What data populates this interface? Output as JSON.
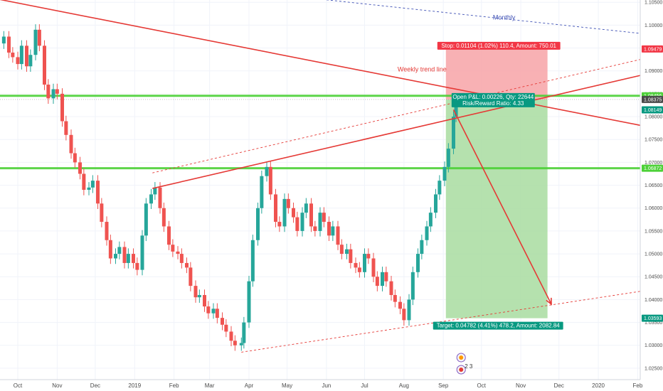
{
  "chart_data": {
    "type": "candlestick",
    "instrument": "",
    "x_axis": {
      "labels": [
        "Oct",
        "Nov",
        "Dec",
        "2019",
        "Feb",
        "Mar",
        "Apr",
        "May",
        "Jun",
        "Jul",
        "Aug",
        "Sep",
        "Oct",
        "Nov",
        "Dec",
        "2020",
        "Feb"
      ],
      "range": [
        "2018-09-17",
        "2020-02-03"
      ]
    },
    "y_axis": {
      "position": "right",
      "min": 1.0225,
      "max": 1.1055,
      "ticks": [
        1.105,
        1.1,
        1.095,
        1.09,
        1.085,
        1.08,
        1.075,
        1.07,
        1.065,
        1.06,
        1.055,
        1.05,
        1.045,
        1.04,
        1.035,
        1.03,
        1.025
      ],
      "tick_labels": [
        "1.10500",
        "1.10000",
        "1.09500",
        "1.09000",
        "1.08500",
        "1.08000",
        "1.07500",
        "1.07000",
        "1.06500",
        "1.06000",
        "1.05500",
        "1.05000",
        "1.04500",
        "1.04000",
        "1.03500",
        "1.03000",
        "1.02500"
      ]
    },
    "price_tags": [
      {
        "label": "1.09479",
        "value": 1.09479,
        "color": "#f23645"
      },
      {
        "label": "1.08456",
        "value": 1.08456,
        "color": "#4cd137"
      },
      {
        "label": "1.08375",
        "value": 1.08375,
        "color": "#4a4a4a"
      },
      {
        "label": "1.08149",
        "value": 1.08149,
        "color": "#089981"
      },
      {
        "label": "1.06872",
        "value": 1.06872,
        "color": "#4cd137"
      },
      {
        "label": "1.03593",
        "value": 1.03593,
        "color": "#089981"
      }
    ],
    "horizontal_levels": [
      {
        "value": 1.08456,
        "color": "#4cd137"
      },
      {
        "value": 1.06872,
        "color": "#4cd137"
      }
    ],
    "annotations": {
      "monthly": "Monthly",
      "weekly": "Weekly trend line",
      "stop": "Stop: 0.01104 (1.02%) 110.4, Amount: 750.01",
      "open_pnl": "Open P&L: 0.00226, Qty: 22644",
      "rr": "Risk/Reward Ratio: 4.33",
      "target": "Target: 0.04782 (4.41%) 478.2, Amount: 2082.84",
      "events_count": "2 3"
    },
    "position": {
      "entry": 1.08375,
      "stop": 1.09479,
      "target": 1.03593,
      "start_date": "2019-09-03",
      "end_date": "2019-11-22"
    },
    "trend_lines": [
      {
        "name": "monthly",
        "from": [
          "2018-12-16",
          1.1105
        ],
        "to": [
          "2020-02-03",
          1.0982
        ],
        "style": "dashed",
        "color": "#3f51b5"
      },
      {
        "name": "weekly",
        "from": [
          "2018-09-17",
          1.1056
        ],
        "to": [
          "2020-02-03",
          1.0781
        ],
        "style": "solid",
        "color": "#e53935"
      },
      {
        "name": "channel-upper",
        "from": [
          "2019-01-15",
          1.0643
        ],
        "to": [
          "2020-02-03",
          1.089
        ],
        "style": "solid",
        "color": "#e53935"
      },
      {
        "name": "channel-upper-parallel",
        "from": [
          "2019-01-15",
          1.0677
        ],
        "to": [
          "2020-02-03",
          1.0925
        ],
        "style": "dashed",
        "color": "#e53935"
      },
      {
        "name": "channel-lower",
        "from": [
          "2019-03-26",
          1.0285
        ],
        "to": [
          "2020-02-03",
          1.0418
        ],
        "style": "dashed",
        "color": "#e53935"
      }
    ],
    "projection_arrow": {
      "from": [
        "2019-09-09",
        1.0815
      ],
      "to": [
        "2019-11-25",
        1.039
      ],
      "color": "#e53935"
    },
    "daily_close": [
      [
        "2018-09-17",
        1.096
      ],
      [
        "2018-09-20",
        1.0975
      ],
      [
        "2018-09-24",
        1.094
      ],
      [
        "2018-09-27",
        1.093
      ],
      [
        "2018-10-01",
        1.0915
      ],
      [
        "2018-10-04",
        1.0955
      ],
      [
        "2018-10-08",
        1.091
      ],
      [
        "2018-10-11",
        1.0935
      ],
      [
        "2018-10-15",
        1.099
      ],
      [
        "2018-10-18",
        1.0955
      ],
      [
        "2018-10-22",
        1.087
      ],
      [
        "2018-10-25",
        1.084
      ],
      [
        "2018-10-29",
        1.086
      ],
      [
        "2018-11-01",
        1.085
      ],
      [
        "2018-11-05",
        1.079
      ],
      [
        "2018-11-08",
        1.076
      ],
      [
        "2018-11-12",
        1.072
      ],
      [
        "2018-11-15",
        1.07
      ],
      [
        "2018-11-19",
        1.0675
      ],
      [
        "2018-11-22",
        1.064
      ],
      [
        "2018-11-26",
        1.0645
      ],
      [
        "2018-11-29",
        1.066
      ],
      [
        "2018-12-03",
        1.061
      ],
      [
        "2018-12-06",
        1.057
      ],
      [
        "2018-12-10",
        1.053
      ],
      [
        "2018-12-13",
        1.049
      ],
      [
        "2018-12-17",
        1.05
      ],
      [
        "2018-12-20",
        1.0515
      ],
      [
        "2018-12-24",
        1.048
      ],
      [
        "2018-12-27",
        1.05
      ],
      [
        "2018-12-31",
        1.048
      ],
      [
        "2019-01-03",
        1.0465
      ],
      [
        "2019-01-07",
        1.054
      ],
      [
        "2019-01-10",
        1.061
      ],
      [
        "2019-01-14",
        1.063
      ],
      [
        "2019-01-17",
        1.0645
      ],
      [
        "2019-01-21",
        1.06
      ],
      [
        "2019-01-24",
        1.056
      ],
      [
        "2019-01-28",
        1.052
      ],
      [
        "2019-01-31",
        1.0505
      ],
      [
        "2019-02-04",
        1.05
      ],
      [
        "2019-02-07",
        1.048
      ],
      [
        "2019-02-11",
        1.047
      ],
      [
        "2019-02-14",
        1.043
      ],
      [
        "2019-02-18",
        1.0405
      ],
      [
        "2019-02-21",
        1.041
      ],
      [
        "2019-02-25",
        1.0385
      ],
      [
        "2019-02-28",
        1.037
      ],
      [
        "2019-03-04",
        1.038
      ],
      [
        "2019-03-07",
        1.036
      ],
      [
        "2019-03-11",
        1.0345
      ],
      [
        "2019-03-14",
        1.033
      ],
      [
        "2019-03-18",
        1.031
      ],
      [
        "2019-03-21",
        1.03
      ],
      [
        "2019-03-26",
        1.0305
      ],
      [
        "2019-03-28",
        1.035
      ],
      [
        "2019-04-01",
        1.044
      ],
      [
        "2019-04-04",
        1.053
      ],
      [
        "2019-04-08",
        1.06
      ],
      [
        "2019-04-11",
        1.067
      ],
      [
        "2019-04-15",
        1.069
      ],
      [
        "2019-04-18",
        1.063
      ],
      [
        "2019-04-22",
        1.057
      ],
      [
        "2019-04-25",
        1.056
      ],
      [
        "2019-04-29",
        1.062
      ],
      [
        "2019-05-02",
        1.06
      ],
      [
        "2019-05-06",
        1.058
      ],
      [
        "2019-05-09",
        1.055
      ],
      [
        "2019-05-13",
        1.059
      ],
      [
        "2019-05-16",
        1.061
      ],
      [
        "2019-05-20",
        1.056
      ],
      [
        "2019-05-23",
        1.055
      ],
      [
        "2019-05-27",
        1.059
      ],
      [
        "2019-05-30",
        1.057
      ],
      [
        "2019-06-03",
        1.054
      ],
      [
        "2019-06-06",
        1.056
      ],
      [
        "2019-06-10",
        1.052
      ],
      [
        "2019-06-13",
        1.05
      ],
      [
        "2019-06-17",
        1.051
      ],
      [
        "2019-06-20",
        1.048
      ],
      [
        "2019-06-24",
        1.047
      ],
      [
        "2019-06-27",
        1.046
      ],
      [
        "2019-07-01",
        1.05
      ],
      [
        "2019-07-04",
        1.049
      ],
      [
        "2019-07-08",
        1.045
      ],
      [
        "2019-07-11",
        1.043
      ],
      [
        "2019-07-15",
        1.046
      ],
      [
        "2019-07-18",
        1.044
      ],
      [
        "2019-07-22",
        1.041
      ],
      [
        "2019-07-25",
        1.0395
      ],
      [
        "2019-07-29",
        1.038
      ],
      [
        "2019-08-01",
        1.0355
      ],
      [
        "2019-08-05",
        1.04
      ],
      [
        "2019-08-08",
        1.046
      ],
      [
        "2019-08-12",
        1.05
      ],
      [
        "2019-08-15",
        1.053
      ],
      [
        "2019-08-19",
        1.056
      ],
      [
        "2019-08-22",
        1.059
      ],
      [
        "2019-08-26",
        1.063
      ],
      [
        "2019-08-29",
        1.066
      ],
      [
        "2019-09-02",
        1.069
      ],
      [
        "2019-09-05",
        1.073
      ],
      [
        "2019-09-09",
        1.08
      ],
      [
        "2019-09-11",
        1.083
      ]
    ]
  }
}
